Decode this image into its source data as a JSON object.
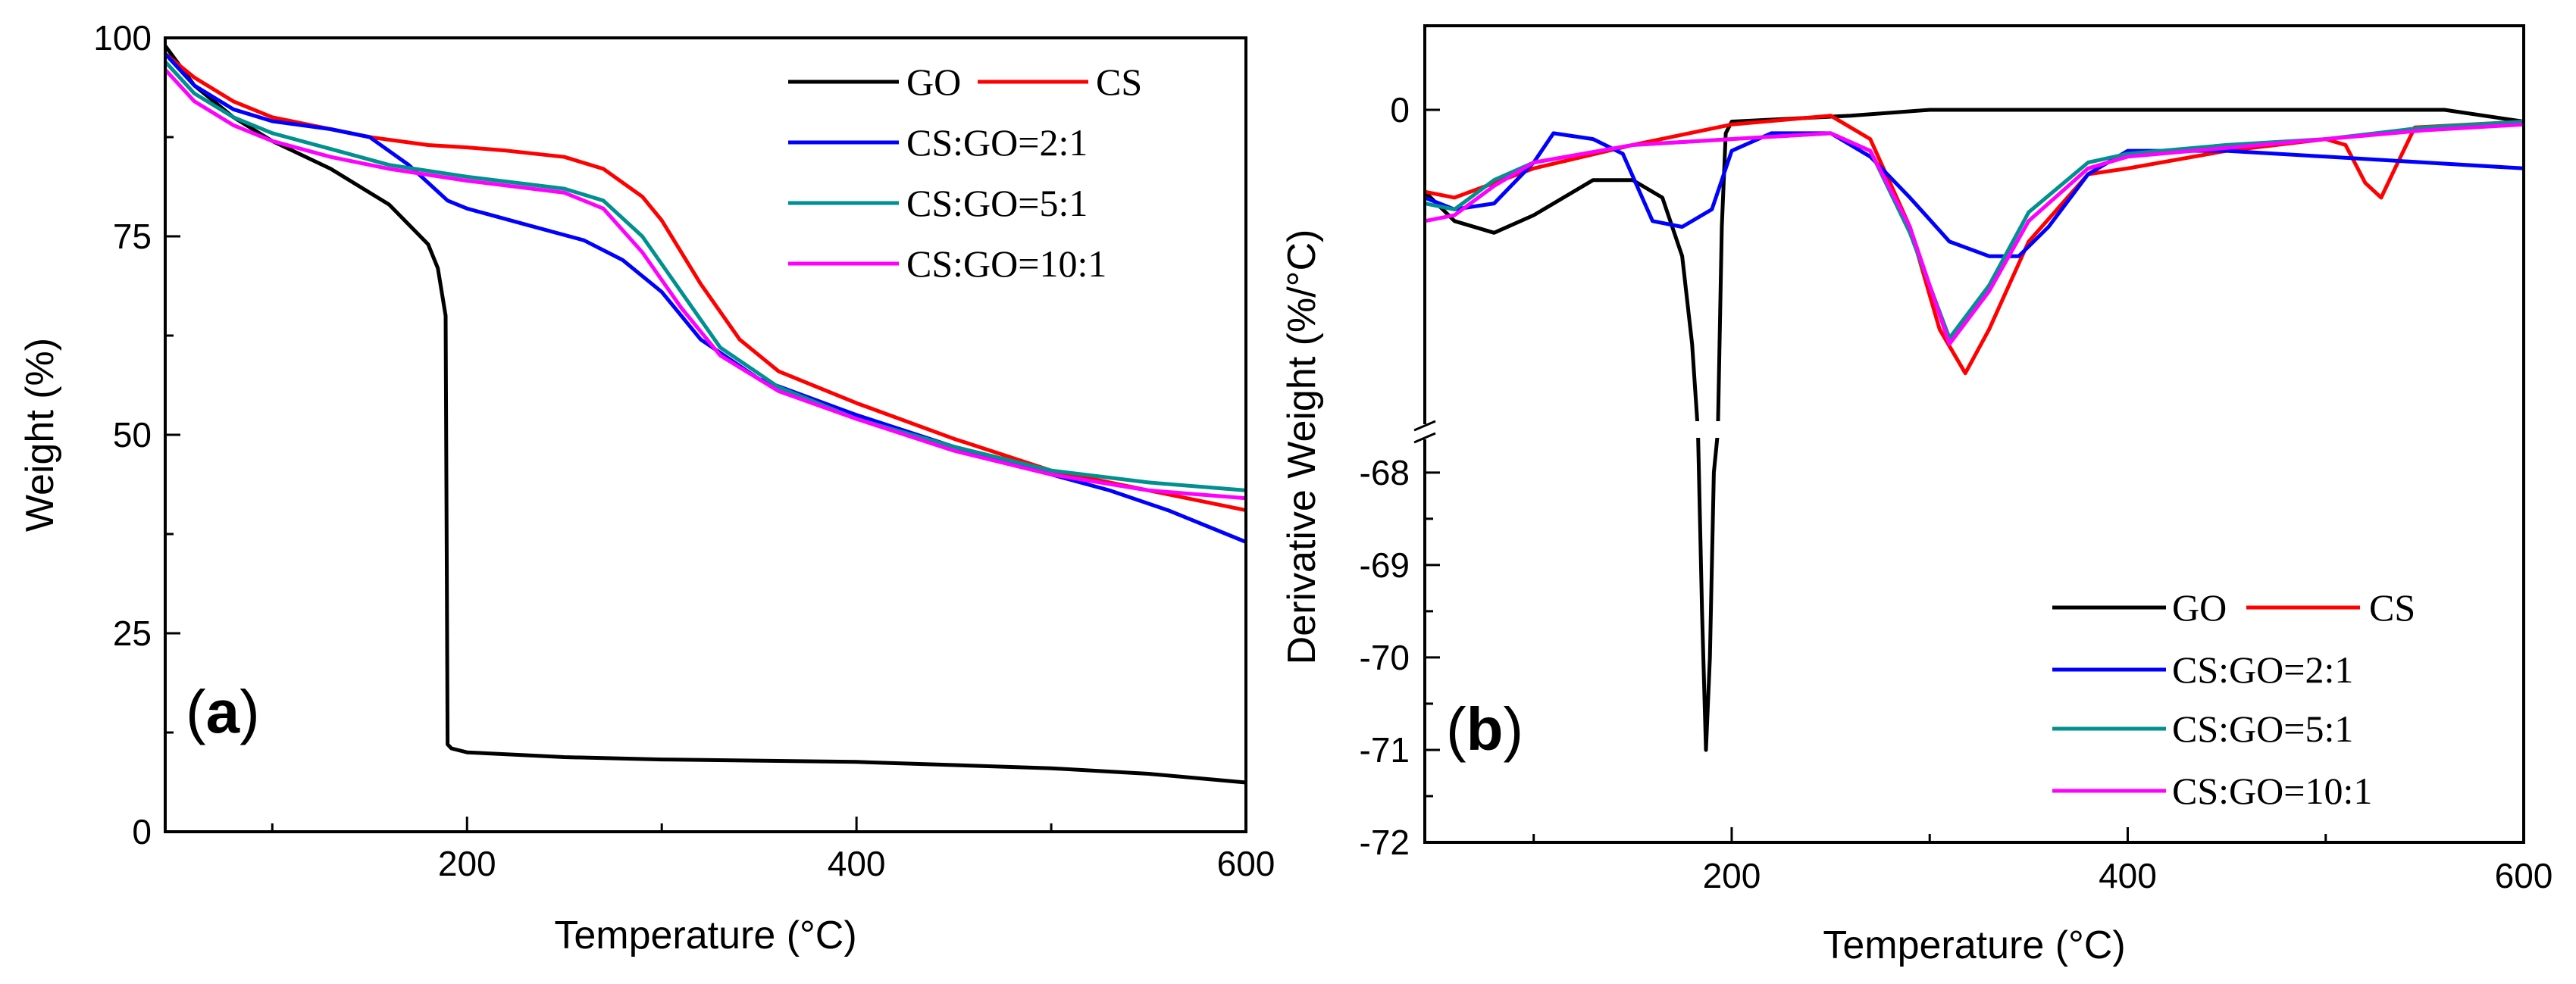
{
  "colors": {
    "GO": "#000000",
    "CS": "#ff0000",
    "CS:GO=2:1": "#0000ff",
    "CS:GO=5:1": "#009090",
    "CS:GO=10:1": "#ff00ff"
  },
  "chart_data": [
    {
      "type": "line",
      "panel_label": "a",
      "title": "",
      "xlabel": "Temperature (°C)",
      "ylabel": "Weight (%)",
      "xlim": [
        45,
        600
      ],
      "ylim": [
        0,
        100
      ],
      "xticks": [
        200,
        400,
        600
      ],
      "yticks": [
        0,
        25,
        50,
        75,
        100
      ],
      "legend": {
        "placement": "top-right",
        "entries": [
          "GO",
          "CS",
          "CS:GO=2:1",
          "CS:GO=5:1",
          "CS:GO=10:1"
        ]
      },
      "series": [
        {
          "name": "GO",
          "x": [
            45,
            60,
            80,
            100,
            130,
            160,
            180,
            185,
            189,
            190,
            192,
            200,
            250,
            300,
            400,
            500,
            550,
            600
          ],
          "y": [
            99,
            94,
            90,
            87,
            83.5,
            79,
            74,
            71,
            65,
            11,
            10.5,
            10,
            9.4,
            9.1,
            8.8,
            8,
            7.3,
            6.2
          ]
        },
        {
          "name": "CS",
          "x": [
            45,
            60,
            80,
            100,
            120,
            150,
            180,
            200,
            220,
            250,
            270,
            290,
            300,
            320,
            340,
            360,
            400,
            450,
            500,
            550,
            600
          ],
          "y": [
            98,
            95,
            92,
            90,
            89,
            87.5,
            86.5,
            86.2,
            85.8,
            85,
            83.5,
            80,
            77,
            69,
            62,
            58,
            54,
            49.5,
            45.5,
            43,
            40.5
          ]
        },
        {
          "name": "CS:GO=2:1",
          "x": [
            45,
            60,
            80,
            100,
            130,
            150,
            170,
            190,
            200,
            230,
            260,
            280,
            300,
            320,
            350,
            400,
            450,
            500,
            530,
            560,
            600
          ],
          "y": [
            98,
            94,
            91,
            89.5,
            88.5,
            87.5,
            84,
            79.5,
            78.5,
            76.5,
            74.5,
            72,
            68,
            62,
            57,
            52.5,
            48.5,
            45,
            43,
            40.5,
            36.5
          ]
        },
        {
          "name": "CS:GO=5:1",
          "x": [
            45,
            60,
            80,
            100,
            130,
            160,
            200,
            250,
            270,
            290,
            310,
            330,
            360,
            400,
            450,
            500,
            550,
            600
          ],
          "y": [
            97,
            93,
            90,
            88,
            86,
            84,
            82.5,
            81,
            79.5,
            75,
            68,
            61,
            56,
            52,
            48.5,
            45.5,
            44,
            43
          ]
        },
        {
          "name": "CS:GO=10:1",
          "x": [
            45,
            60,
            80,
            100,
            130,
            160,
            200,
            250,
            270,
            290,
            310,
            330,
            360,
            400,
            450,
            500,
            550,
            600
          ],
          "y": [
            96,
            92,
            89,
            87,
            85,
            83.5,
            82,
            80.5,
            78.5,
            73,
            66,
            60,
            55.5,
            52,
            48,
            45,
            43,
            42
          ]
        }
      ]
    },
    {
      "type": "line",
      "panel_label": "b",
      "title": "",
      "xlabel": "Temperature (°C)",
      "ylabel": "Derivative Weight (%/°C)",
      "xlim": [
        45,
        600
      ],
      "axis_break": true,
      "ylim_upper_segment": [
        -1.1,
        0.1
      ],
      "ylim_lower_segment": [
        -72,
        -67.6
      ],
      "yticks": [
        "0",
        "-68",
        "-69",
        "-70",
        "-71",
        "-72"
      ],
      "xticks": [
        200,
        400,
        600
      ],
      "legend": {
        "placement": "bottom-right",
        "entries": [
          "GO",
          "CS",
          "CS:GO=2:1",
          "CS:GO=5:1",
          "CS:GO=10:1"
        ]
      },
      "series": [
        {
          "name": "GO",
          "x": [
            45,
            60,
            80,
            100,
            130,
            150,
            165,
            175,
            180,
            183,
            185,
            187,
            189,
            191,
            193,
            195,
            197,
            200,
            260,
            300,
            400,
            500,
            560,
            600
          ],
          "y": [
            -0.28,
            -0.38,
            -0.42,
            -0.36,
            -0.24,
            -0.24,
            -0.3,
            -0.5,
            -0.8,
            -1.1,
            -69.5,
            -71,
            -70,
            -68,
            -1.1,
            -0.4,
            -0.08,
            -0.04,
            -0.02,
            0,
            0,
            0,
            0,
            -0.04
          ]
        },
        {
          "name": "CS",
          "x": [
            45,
            60,
            80,
            100,
            150,
            200,
            250,
            270,
            290,
            305,
            318,
            330,
            350,
            380,
            400,
            450,
            500,
            510,
            520,
            528,
            535,
            545,
            600
          ],
          "y": [
            -0.28,
            -0.3,
            -0.25,
            -0.2,
            -0.12,
            -0.05,
            -0.02,
            -0.1,
            -0.4,
            -0.75,
            -0.9,
            -0.75,
            -0.45,
            -0.22,
            -0.2,
            -0.14,
            -0.1,
            -0.12,
            -0.25,
            -0.3,
            -0.2,
            -0.06,
            -0.04
          ]
        },
        {
          "name": "CS:GO=2:1",
          "x": [
            45,
            60,
            80,
            100,
            110,
            130,
            145,
            160,
            175,
            190,
            200,
            220,
            250,
            270,
            290,
            310,
            330,
            345,
            360,
            380,
            400,
            450,
            500,
            550,
            600
          ],
          "y": [
            -0.3,
            -0.34,
            -0.32,
            -0.18,
            -0.08,
            -0.1,
            -0.15,
            -0.38,
            -0.4,
            -0.34,
            -0.14,
            -0.08,
            -0.08,
            -0.16,
            -0.3,
            -0.45,
            -0.5,
            -0.5,
            -0.4,
            -0.22,
            -0.14,
            -0.14,
            -0.16,
            -0.18,
            -0.2
          ]
        },
        {
          "name": "CS:GO=5:1",
          "x": [
            45,
            60,
            80,
            100,
            150,
            200,
            250,
            270,
            290,
            310,
            330,
            350,
            380,
            400,
            450,
            500,
            550,
            600
          ],
          "y": [
            -0.32,
            -0.34,
            -0.24,
            -0.18,
            -0.12,
            -0.1,
            -0.08,
            -0.14,
            -0.42,
            -0.78,
            -0.6,
            -0.35,
            -0.18,
            -0.15,
            -0.12,
            -0.1,
            -0.06,
            -0.04
          ]
        },
        {
          "name": "CS:GO=10:1",
          "x": [
            45,
            60,
            80,
            100,
            150,
            200,
            250,
            270,
            290,
            310,
            330,
            350,
            380,
            400,
            450,
            500,
            550,
            600
          ],
          "y": [
            -0.38,
            -0.36,
            -0.26,
            -0.18,
            -0.12,
            -0.1,
            -0.08,
            -0.14,
            -0.4,
            -0.8,
            -0.62,
            -0.38,
            -0.2,
            -0.16,
            -0.13,
            -0.1,
            -0.07,
            -0.05
          ]
        }
      ]
    }
  ]
}
